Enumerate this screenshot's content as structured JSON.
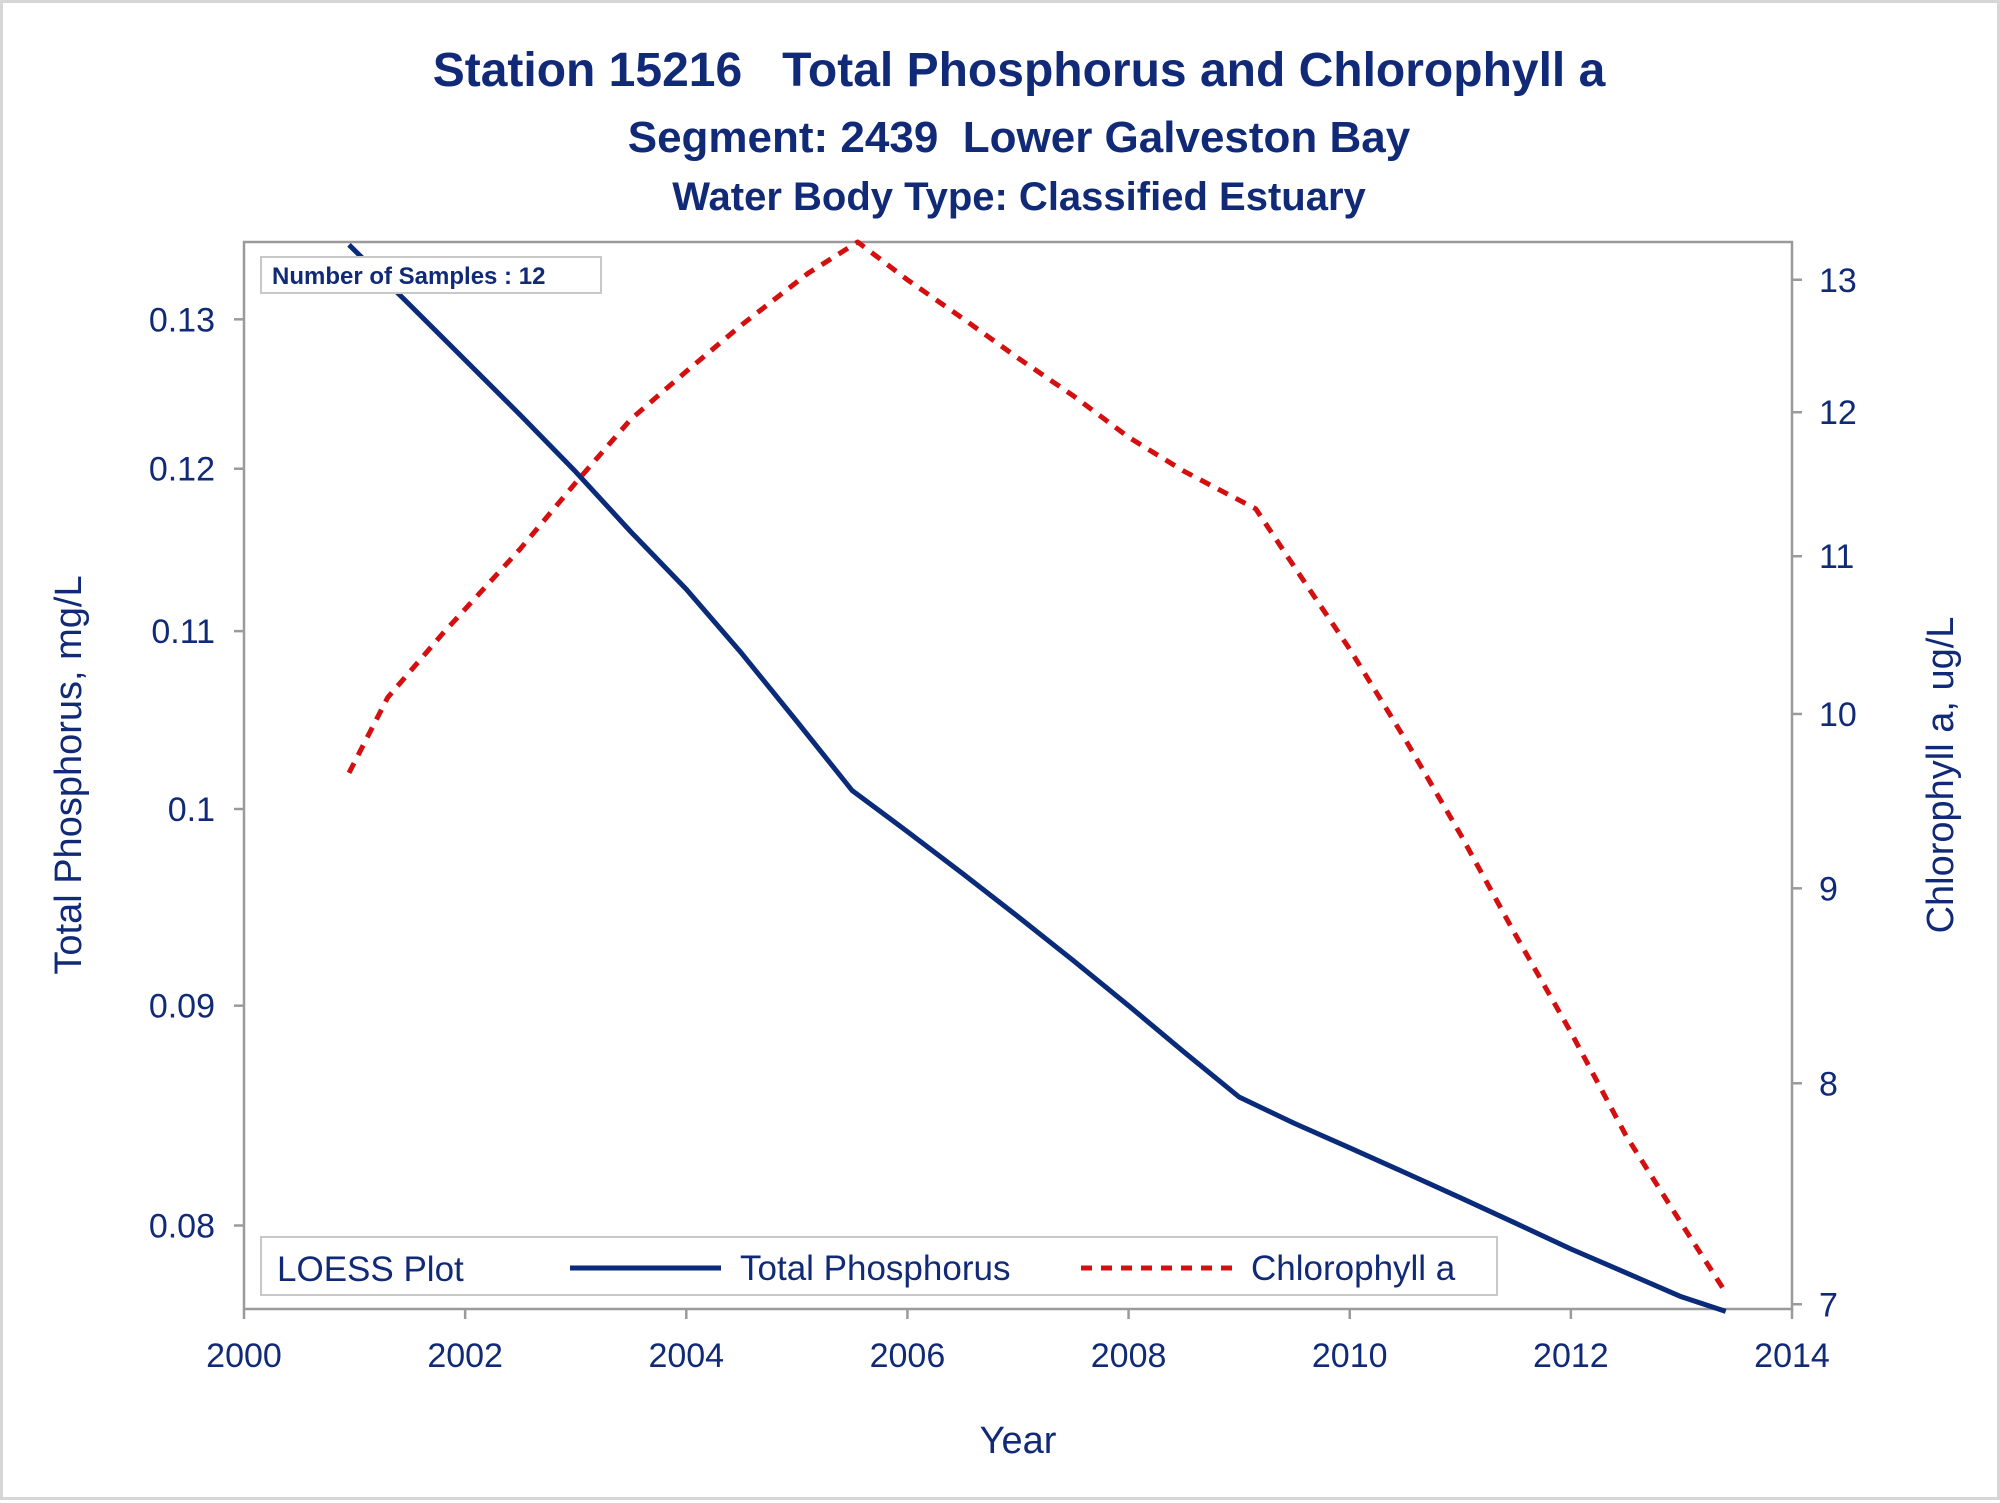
{
  "titles": {
    "line1": "Station 15216   Total Phosphorus and Chlorophyll a",
    "line2": "Segment: 2439  Lower Galveston Bay",
    "line3": "Water Body Type: Classified Estuary"
  },
  "inset": "Number of Samples : 12",
  "legend": {
    "title": "LOESS Plot",
    "items": [
      "Total Phosphorus",
      "Chlorophyll a"
    ]
  },
  "colors": {
    "text": "#112a78",
    "phosphorus": "#0a2a7a",
    "chlorophyll": "#d40f0f",
    "frame": "#9a9a9a"
  },
  "chart_data": {
    "type": "line",
    "title": "Station 15216   Total Phosphorus and Chlorophyll a",
    "xlabel": "Year",
    "ylabel": "Total Phosphorus, mg/L",
    "y2label": "Chlorophyll a, ug/L",
    "xlim": [
      2000,
      2014
    ],
    "ylim": [
      0.0765,
      0.1355
    ],
    "y2lim": [
      6.98,
      13.3
    ],
    "y_scale": "log",
    "y2_scale": "log",
    "xticks": [
      "2000",
      "2002",
      "2004",
      "2006",
      "2008",
      "2010",
      "2012",
      "2014"
    ],
    "yticks": [
      "0.08",
      "0.09",
      "0.1",
      "0.11",
      "0.12",
      "0.13"
    ],
    "y2ticks": [
      "7",
      "8",
      "9",
      "10",
      "11",
      "12",
      "13"
    ],
    "grid": false,
    "legend_position": "bottom-inside",
    "series": [
      {
        "name": "Total Phosphorus",
        "axis": "left",
        "style": "solid",
        "x": [
          2000.95,
          2001.5,
          2002.0,
          2002.5,
          2003.0,
          2003.5,
          2004.0,
          2004.5,
          2005.0,
          2005.5,
          2006.0,
          2006.5,
          2007.0,
          2007.5,
          2008.0,
          2008.5,
          2009.0,
          2009.5,
          2010.0,
          2010.5,
          2011.0,
          2011.5,
          2012.0,
          2012.5,
          2013.0,
          2013.4
        ],
        "y": [
          0.1353,
          0.131,
          0.1272,
          0.1235,
          0.1198,
          0.116,
          0.1125,
          0.1087,
          0.1048,
          0.101,
          0.0988,
          0.0966,
          0.0944,
          0.0922,
          0.09,
          0.0878,
          0.0857,
          0.0845,
          0.0834,
          0.0823,
          0.0812,
          0.0801,
          0.079,
          0.078,
          0.077,
          0.0764
        ]
      },
      {
        "name": "Chlorophyll a",
        "axis": "right",
        "style": "dashed",
        "x": [
          2000.95,
          2001.3,
          2001.8,
          2002.5,
          2003.0,
          2003.5,
          2004.0,
          2004.5,
          2005.1,
          2005.55,
          2006.0,
          2006.5,
          2007.0,
          2007.5,
          2008.0,
          2008.5,
          2009.15,
          2009.6,
          2010.0,
          2010.5,
          2011.0,
          2011.5,
          2012.0,
          2012.5,
          2013.0,
          2013.4
        ],
        "y": [
          9.65,
          10.1,
          10.5,
          11.05,
          11.5,
          11.95,
          12.3,
          12.65,
          13.05,
          13.3,
          13.0,
          12.7,
          12.4,
          12.12,
          11.82,
          11.58,
          11.32,
          10.82,
          10.4,
          9.85,
          9.3,
          8.75,
          8.25,
          7.75,
          7.35,
          7.05
        ]
      }
    ]
  }
}
